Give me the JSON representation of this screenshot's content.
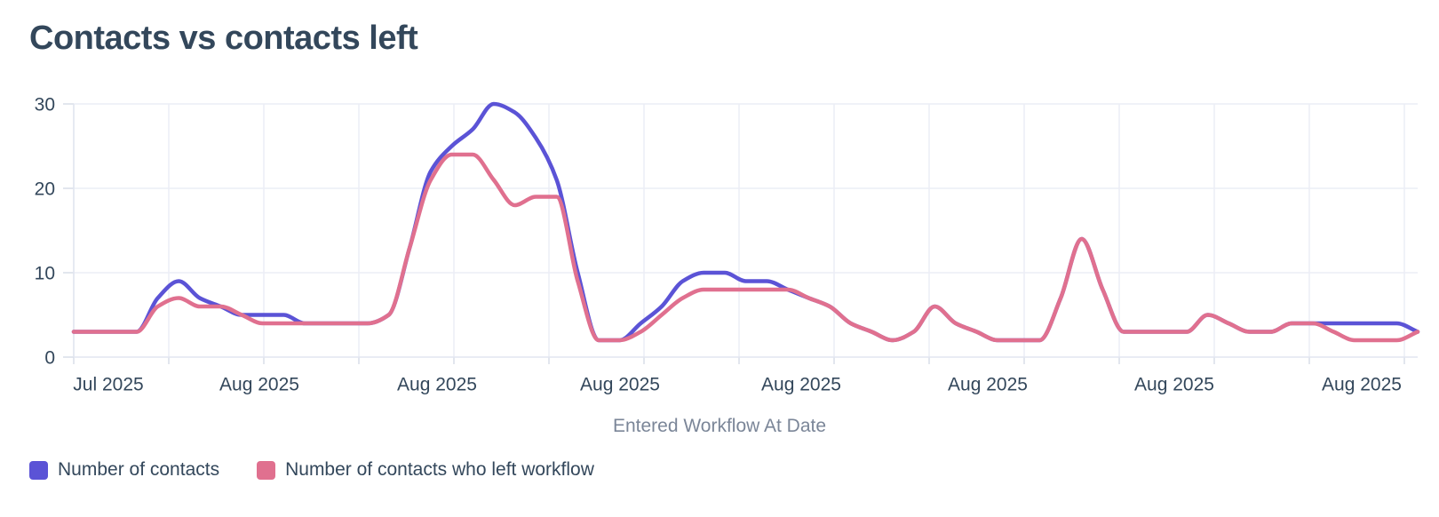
{
  "title": "Contacts vs contacts left",
  "chart_data": {
    "type": "line",
    "title": "Contacts vs contacts left",
    "xlabel": "Entered Workflow At Date",
    "ylabel": "",
    "ylim": [
      0,
      30
    ],
    "y_ticks": [
      0,
      10,
      20,
      30
    ],
    "x_tick_labels": [
      "Jul 2025",
      "Aug 2025",
      "Aug 2025",
      "Aug 2025",
      "Aug 2025",
      "Aug 2025",
      "Aug 2025",
      "Aug 2025"
    ],
    "grid": true,
    "legend_position": "bottom-left",
    "series": [
      {
        "name": "Number of contacts",
        "color": "#5b53d6",
        "values": [
          3,
          3,
          3,
          3,
          7,
          9,
          7,
          6,
          5,
          5,
          5,
          4,
          4,
          4,
          4,
          5,
          13,
          22,
          25,
          27,
          30,
          29,
          26,
          21,
          10,
          2,
          2,
          4,
          6,
          9,
          10,
          10,
          9,
          9,
          8,
          7,
          6,
          4,
          3,
          2,
          3,
          6,
          4,
          3,
          2,
          2,
          2,
          7,
          14,
          8,
          3,
          3,
          3,
          3,
          5,
          4,
          3,
          3,
          4,
          4,
          4,
          4,
          4,
          4,
          3
        ]
      },
      {
        "name": "Number of contacts who left workflow",
        "color": "#e0708f",
        "values": [
          3,
          3,
          3,
          3,
          6,
          7,
          6,
          6,
          5,
          4,
          4,
          4,
          4,
          4,
          4,
          5,
          13,
          21,
          24,
          24,
          21,
          18,
          19,
          19,
          9,
          2,
          2,
          3,
          5,
          7,
          8,
          8,
          8,
          8,
          8,
          7,
          6,
          4,
          3,
          2,
          3,
          6,
          4,
          3,
          2,
          2,
          2,
          7,
          14,
          8,
          3,
          3,
          3,
          3,
          5,
          4,
          3,
          3,
          4,
          4,
          3,
          2,
          2,
          2,
          3
        ]
      }
    ]
  },
  "colors": {
    "title": "#33475b",
    "axis_label": "#33475b",
    "axis_title": "#7b8698",
    "gridline": "#ecedf5",
    "axis_line": "#e2e6f0",
    "tick": "#d8dde9"
  }
}
